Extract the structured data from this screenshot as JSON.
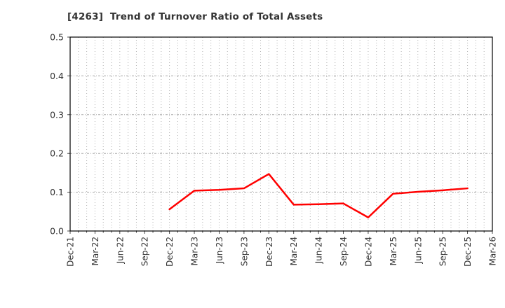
{
  "chart_data": {
    "type": "line",
    "title": "[4263]  Trend of Turnover Ratio of Total Assets",
    "title_color": "#333333",
    "categories": [
      "Dec-21",
      "Mar-22",
      "Jun-22",
      "Sep-22",
      "Dec-22",
      "Mar-23",
      "Jun-23",
      "Sep-23",
      "Dec-23",
      "Mar-24",
      "Jun-24",
      "Sep-24",
      "Dec-24",
      "Mar-25",
      "Jun-25",
      "Sep-25",
      "Dec-25",
      "Mar-26"
    ],
    "series": [
      {
        "name": "Turnover Ratio of Total Assets",
        "color": "#ff0000",
        "line_width": 2.5,
        "values": [
          null,
          null,
          null,
          null,
          0.056,
          0.104,
          0.106,
          0.11,
          0.147,
          0.068,
          0.069,
          0.071,
          0.035,
          0.096,
          0.101,
          0.105,
          0.11,
          null
        ]
      }
    ],
    "xlabel": "",
    "ylabel": "",
    "ylim": [
      0.0,
      0.5
    ],
    "ytick_labels": [
      "0.0",
      "0.1",
      "0.2",
      "0.3",
      "0.4",
      "0.5"
    ],
    "legend_position": "none",
    "grid": {
      "vertical_style": "dotted-monthly",
      "horizontal_style": "dashed",
      "months_per_category": 3,
      "grid_color": "#b0b0b0"
    },
    "axis_color": "#000000",
    "tick_label_color": "#333333",
    "background_color": "#ffffff"
  }
}
